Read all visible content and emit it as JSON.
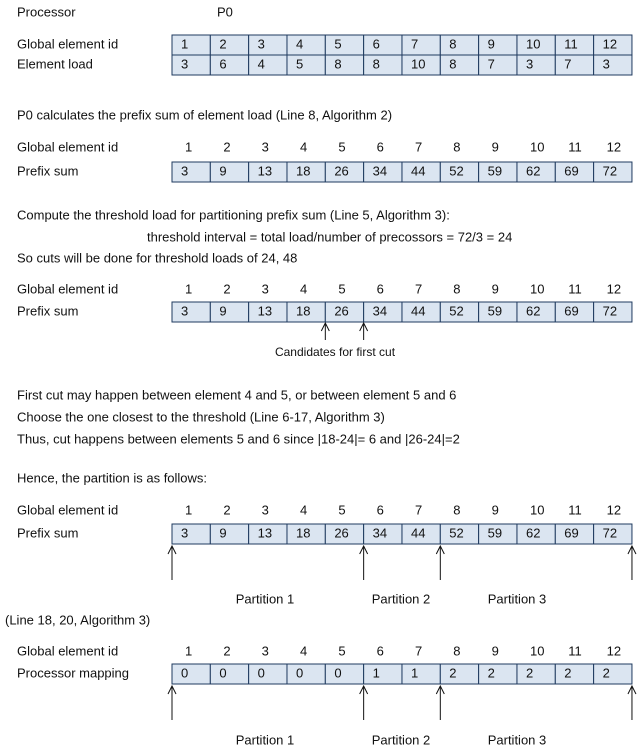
{
  "processor": {
    "label": "Processor",
    "value": "P0"
  },
  "table1": {
    "rows": [
      {
        "label": "Global element id",
        "cells": [
          1,
          2,
          3,
          4,
          5,
          6,
          7,
          8,
          9,
          10,
          11,
          12
        ]
      },
      {
        "label": "Element load",
        "cells": [
          3,
          6,
          4,
          5,
          8,
          8,
          10,
          8,
          7,
          3,
          7,
          3
        ]
      }
    ]
  },
  "text1": "P0 calculates the prefix sum of element load (Line 8, Algorithm 2)",
  "table2": {
    "header": {
      "label": "Global element id",
      "cells": [
        1,
        2,
        3,
        4,
        5,
        6,
        7,
        8,
        9,
        10,
        11,
        12
      ]
    },
    "row": {
      "label": "Prefix sum",
      "cells": [
        3,
        9,
        13,
        18,
        26,
        34,
        44,
        52,
        59,
        62,
        69,
        72
      ]
    }
  },
  "text2": [
    "Compute the threshold load for partitioning prefix sum (Line 5, Algorithm 3):",
    "threshold interval = total load/number of precossors = 72/3 = 24",
    "So cuts will be done for threshold loads of 24, 48"
  ],
  "table3": {
    "header": {
      "label": "Global element id",
      "cells": [
        1,
        2,
        3,
        4,
        5,
        6,
        7,
        8,
        9,
        10,
        11,
        12
      ]
    },
    "row": {
      "label": "Prefix sum",
      "cells": [
        3,
        9,
        13,
        18,
        26,
        34,
        44,
        52,
        59,
        62,
        69,
        72
      ]
    },
    "annotation": "Candidates for first cut"
  },
  "text3": [
    "First cut may happen between element 4 and 5, or between element 5 and 6",
    "Choose the one closest to the threshold (Line 6-17, Algorithm 3)",
    "Thus, cut happens between elements 5 and 6 since |18-24|= 6 and |26-24|=2"
  ],
  "text4": "Hence, the partition is as follows:",
  "table4": {
    "header": {
      "label": "Global element id",
      "cells": [
        1,
        2,
        3,
        4,
        5,
        6,
        7,
        8,
        9,
        10,
        11,
        12
      ]
    },
    "row": {
      "label": "Prefix sum",
      "cells": [
        3,
        9,
        13,
        18,
        26,
        34,
        44,
        52,
        59,
        62,
        69,
        72
      ]
    },
    "partitions": [
      "Partition 1",
      "Partition 2",
      "Partition 3"
    ]
  },
  "text5": "(Line 18, 20, Algorithm 3)",
  "table5": {
    "header": {
      "label": "Global element id",
      "cells": [
        1,
        2,
        3,
        4,
        5,
        6,
        7,
        8,
        9,
        10,
        11,
        12
      ]
    },
    "row": {
      "label": "Processor mapping",
      "cells": [
        0,
        0,
        0,
        0,
        0,
        1,
        1,
        2,
        2,
        2,
        2,
        2
      ]
    },
    "partitions": [
      "Partition 1",
      "Partition 2",
      "Partition 3"
    ]
  }
}
